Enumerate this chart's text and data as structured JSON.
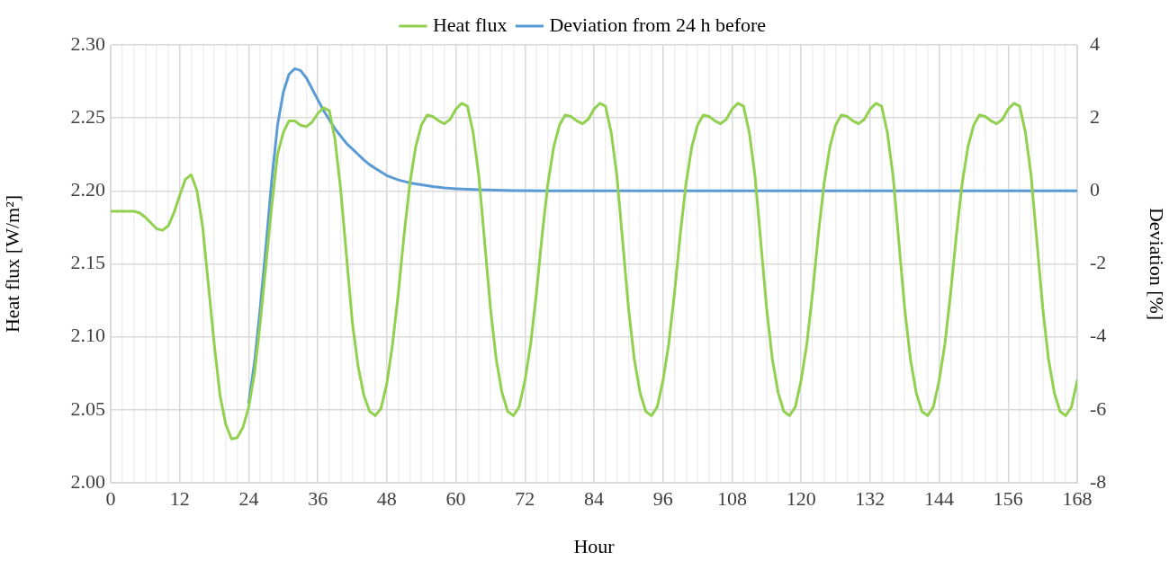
{
  "chart_data": {
    "type": "line",
    "xlabel": "Hour",
    "ylabel": "Heat flux [W/m²]",
    "y2label": "Deviation [%]",
    "xlim": [
      0,
      168
    ],
    "xticks": [
      0,
      {
        "value": 2,
        "label": null
      },
      {
        "value": 4,
        "label": null
      },
      {
        "value": 6,
        "label": null
      },
      {
        "value": 8,
        "label": null
      },
      {
        "value": 10,
        "label": null
      },
      12,
      {
        "value": 14,
        "label": null
      },
      {
        "value": 16,
        "label": null
      },
      {
        "value": 18,
        "label": null
      },
      {
        "value": 20,
        "label": null
      },
      {
        "value": 22,
        "label": null
      },
      24,
      {
        "value": 26,
        "label": null
      },
      {
        "value": 28,
        "label": null
      },
      {
        "value": 30,
        "label": null
      },
      {
        "value": 32,
        "label": null
      },
      {
        "value": 34,
        "label": null
      },
      36,
      {
        "value": 38,
        "label": null
      },
      {
        "value": 40,
        "label": null
      },
      {
        "value": 42,
        "label": null
      },
      {
        "value": 44,
        "label": null
      },
      {
        "value": 46,
        "label": null
      },
      48,
      {
        "value": 50,
        "label": null
      },
      {
        "value": 52,
        "label": null
      },
      {
        "value": 54,
        "label": null
      },
      {
        "value": 56,
        "label": null
      },
      {
        "value": 58,
        "label": null
      },
      60,
      {
        "value": 62,
        "label": null
      },
      {
        "value": 64,
        "label": null
      },
      {
        "value": 66,
        "label": null
      },
      {
        "value": 68,
        "label": null
      },
      {
        "value": 70,
        "label": null
      },
      72,
      {
        "value": 74,
        "label": null
      },
      {
        "value": 76,
        "label": null
      },
      {
        "value": 78,
        "label": null
      },
      {
        "value": 80,
        "label": null
      },
      {
        "value": 82,
        "label": null
      },
      84,
      {
        "value": 86,
        "label": null
      },
      {
        "value": 88,
        "label": null
      },
      {
        "value": 90,
        "label": null
      },
      {
        "value": 92,
        "label": null
      },
      {
        "value": 94,
        "label": null
      },
      96,
      {
        "value": 98,
        "label": null
      },
      {
        "value": 100,
        "label": null
      },
      {
        "value": 102,
        "label": null
      },
      {
        "value": 104,
        "label": null
      },
      {
        "value": 106,
        "label": null
      },
      108,
      {
        "value": 110,
        "label": null
      },
      {
        "value": 112,
        "label": null
      },
      {
        "value": 114,
        "label": null
      },
      {
        "value": 116,
        "label": null
      },
      {
        "value": 118,
        "label": null
      },
      120,
      {
        "value": 122,
        "label": null
      },
      {
        "value": 124,
        "label": null
      },
      {
        "value": 126,
        "label": null
      },
      {
        "value": 128,
        "label": null
      },
      {
        "value": 130,
        "label": null
      },
      132,
      {
        "value": 134,
        "label": null
      },
      {
        "value": 136,
        "label": null
      },
      {
        "value": 138,
        "label": null
      },
      {
        "value": 140,
        "label": null
      },
      {
        "value": 142,
        "label": null
      },
      144,
      {
        "value": 146,
        "label": null
      },
      {
        "value": 148,
        "label": null
      },
      {
        "value": 150,
        "label": null
      },
      {
        "value": 152,
        "label": null
      },
      {
        "value": 154,
        "label": null
      },
      156,
      {
        "value": 158,
        "label": null
      },
      {
        "value": 160,
        "label": null
      },
      {
        "value": 162,
        "label": null
      },
      {
        "value": 164,
        "label": null
      },
      {
        "value": 166,
        "label": null
      },
      168
    ],
    "ylim": [
      2.0,
      2.3
    ],
    "yticks": [
      {
        "value": 2.0,
        "label": "2.00"
      },
      {
        "value": 2.05,
        "label": "2.05"
      },
      {
        "value": 2.1,
        "label": "2.10"
      },
      {
        "value": 2.15,
        "label": "2.15"
      },
      {
        "value": 2.2,
        "label": "2.20"
      },
      {
        "value": 2.25,
        "label": "2.25"
      },
      {
        "value": 2.3,
        "label": "2.30"
      }
    ],
    "y2lim": [
      -8,
      4
    ],
    "y2ticks": [
      -8,
      -6,
      -4,
      -2,
      0,
      2,
      4
    ],
    "grid": true,
    "legend": "top",
    "marker": "none",
    "line_style": "solid",
    "series": [
      {
        "name": "Heat flux",
        "color": "#92d050",
        "x": [
          0,
          1,
          2,
          3,
          4,
          5,
          6,
          7,
          8,
          9,
          10,
          11,
          12,
          13,
          14,
          15,
          16,
          17,
          18,
          19,
          20,
          21,
          22,
          23,
          24,
          25,
          26,
          27,
          28,
          29,
          30,
          31,
          32,
          33,
          34,
          35,
          36,
          37,
          38,
          39,
          40,
          41,
          42,
          43,
          44,
          45,
          46,
          47,
          48,
          49,
          50,
          51,
          52,
          53,
          54,
          55,
          56,
          57,
          58,
          59,
          60,
          61,
          62,
          63,
          64,
          65,
          66,
          67,
          68,
          69,
          70,
          71,
          72,
          73,
          74,
          75,
          76,
          77,
          78,
          79,
          80,
          81,
          82,
          83,
          84,
          85,
          86,
          87,
          88,
          89,
          90,
          91,
          92,
          93,
          94,
          95,
          96,
          97,
          98,
          99,
          100,
          101,
          102,
          103,
          104,
          105,
          106,
          107,
          108,
          109,
          110,
          111,
          112,
          113,
          114,
          115,
          116,
          117,
          118,
          119,
          120,
          121,
          122,
          123,
          124,
          125,
          126,
          127,
          128,
          129,
          130,
          131,
          132,
          133,
          134,
          135,
          136,
          137,
          138,
          139,
          140,
          141,
          142,
          143,
          144,
          145,
          146,
          147,
          148,
          149,
          150,
          151,
          152,
          153,
          154,
          155,
          156,
          157,
          158,
          159,
          160,
          161,
          162,
          163,
          164,
          165,
          166,
          167,
          168
        ],
        "values": [
          2.186,
          2.186,
          2.186,
          2.186,
          2.186,
          2.185,
          2.182,
          2.178,
          2.174,
          2.173,
          2.176,
          2.185,
          2.197,
          2.208,
          2.211,
          2.2,
          2.175,
          2.135,
          2.095,
          2.06,
          2.04,
          2.03,
          2.031,
          2.038,
          2.052,
          2.075,
          2.11,
          2.15,
          2.19,
          2.225,
          2.24,
          2.248,
          2.248,
          2.245,
          2.244,
          2.247,
          2.253,
          2.257,
          2.255,
          2.235,
          2.2,
          2.155,
          2.11,
          2.08,
          2.06,
          2.049,
          2.046,
          2.051,
          2.068,
          2.095,
          2.13,
          2.17,
          2.205,
          2.23,
          2.245,
          2.252,
          2.251,
          2.248,
          2.246,
          2.249,
          2.256,
          2.26,
          2.258,
          2.24,
          2.21,
          2.165,
          2.12,
          2.085,
          2.062,
          2.049,
          2.046,
          2.052,
          2.07,
          2.095,
          2.13,
          2.17,
          2.205,
          2.23,
          2.245,
          2.252,
          2.251,
          2.248,
          2.246,
          2.249,
          2.256,
          2.26,
          2.258,
          2.24,
          2.21,
          2.165,
          2.12,
          2.085,
          2.062,
          2.049,
          2.046,
          2.052,
          2.07,
          2.095,
          2.13,
          2.17,
          2.205,
          2.23,
          2.245,
          2.252,
          2.251,
          2.248,
          2.246,
          2.249,
          2.256,
          2.26,
          2.258,
          2.24,
          2.21,
          2.165,
          2.12,
          2.085,
          2.062,
          2.049,
          2.046,
          2.052,
          2.07,
          2.095,
          2.13,
          2.17,
          2.205,
          2.23,
          2.245,
          2.252,
          2.251,
          2.248,
          2.246,
          2.249,
          2.256,
          2.26,
          2.258,
          2.24,
          2.21,
          2.165,
          2.12,
          2.085,
          2.062,
          2.049,
          2.046,
          2.052,
          2.07,
          2.095,
          2.13,
          2.17,
          2.205,
          2.23,
          2.245,
          2.252,
          2.251,
          2.248,
          2.246,
          2.249,
          2.256,
          2.26,
          2.258,
          2.24,
          2.21,
          2.165,
          2.12,
          2.085,
          2.062,
          2.049,
          2.046,
          2.052,
          2.07
        ]
      },
      {
        "name": "Deviation from 24 h before",
        "color": "#5b9bd5",
        "axis": "y2",
        "x": [
          24,
          25,
          26,
          27,
          28,
          29,
          30,
          31,
          32,
          33,
          34,
          35,
          36,
          37,
          38,
          39,
          40,
          41,
          42,
          43,
          44,
          45,
          46,
          47,
          48,
          50,
          52,
          54,
          56,
          58,
          60,
          64,
          70,
          76,
          90,
          110,
          130,
          150,
          168
        ],
        "values": [
          -5.8,
          -4.7,
          -3.2,
          -1.5,
          0.3,
          1.8,
          2.7,
          3.2,
          3.35,
          3.3,
          3.1,
          2.8,
          2.5,
          2.2,
          1.95,
          1.7,
          1.5,
          1.3,
          1.15,
          1.0,
          0.85,
          0.72,
          0.62,
          0.52,
          0.42,
          0.3,
          0.22,
          0.17,
          0.12,
          0.08,
          0.06,
          0.03,
          0.01,
          0,
          0,
          0,
          0,
          0,
          0
        ]
      }
    ]
  }
}
